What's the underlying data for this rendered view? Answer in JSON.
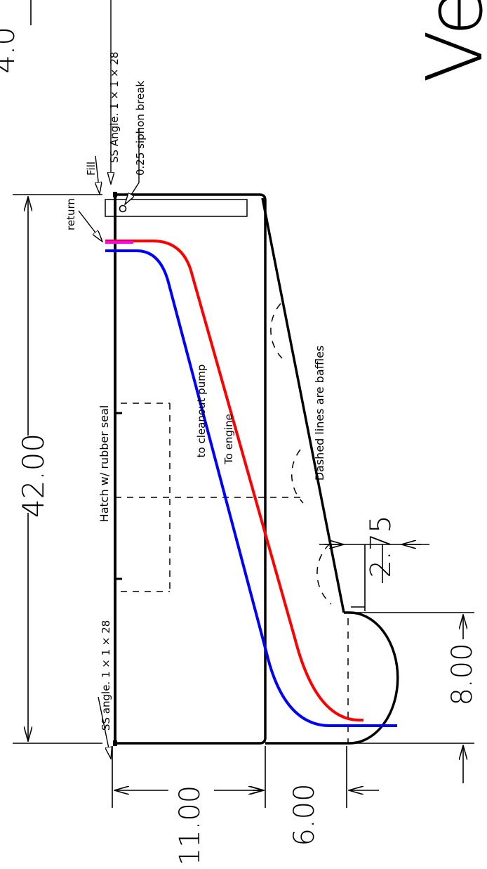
{
  "dimensions": {
    "length": "42.00",
    "height_upper": "11.00",
    "height_lower": "6.00",
    "sump_width": "8.00",
    "offset": "2.75",
    "corner_fragment": "4.0"
  },
  "labels": {
    "ss_angle_top": "SS  Angle.  1  ×  1  ×  28",
    "siphon": "0.25  siphon  break",
    "fill": "Fill",
    "return": "return",
    "hatch": "Hatch  w/  rubber  seal",
    "cleanout": "to  cleanout  pump",
    "engine": "To  engine",
    "baffles": "Dashed  lines  are  baffles",
    "ss_angle_bottom": "SS  angle.  1  ×  1  ×  28",
    "cut_off_title": "Ve"
  },
  "colors": {
    "cleanout_line": "#ff0000",
    "engine_line": "#0000ff",
    "return_line": "#ff00ff",
    "outline": "#000000"
  }
}
